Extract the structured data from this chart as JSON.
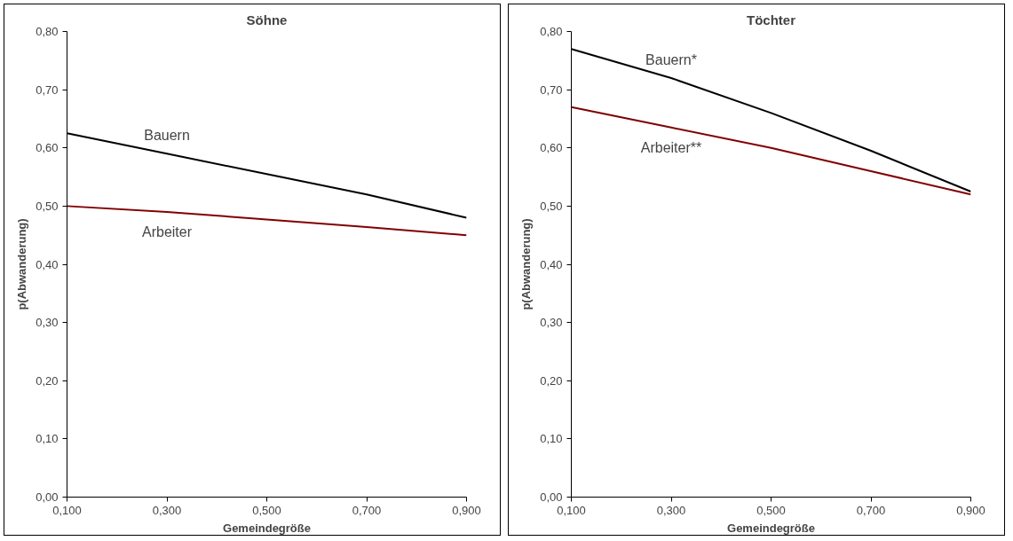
{
  "chart_data": [
    {
      "type": "line",
      "title": "Söhne",
      "xlabel": "Gemeindegröße",
      "ylabel": "p(Abwanderung)",
      "x": [
        0.1,
        0.3,
        0.5,
        0.7,
        0.9
      ],
      "series": [
        {
          "name": "Bauern",
          "color": "#000000",
          "values": [
            0.625,
            0.59,
            0.555,
            0.52,
            0.48
          ]
        },
        {
          "name": "Arbeiter",
          "color": "#800000",
          "values": [
            0.5,
            0.49,
            0.477,
            0.464,
            0.45
          ]
        }
      ],
      "xlim": [
        0.1,
        0.9
      ],
      "xticks": [
        {
          "value": 0.1,
          "label": "0,100"
        },
        {
          "value": 0.3,
          "label": "0,300"
        },
        {
          "value": 0.5,
          "label": "0,500"
        },
        {
          "value": 0.7,
          "label": "0,700"
        },
        {
          "value": 0.9,
          "label": "0,900"
        }
      ],
      "ylim": [
        0,
        0.8
      ],
      "yticks": [
        {
          "value": 0,
          "label": "0,00"
        },
        {
          "value": 0.1,
          "label": "0,10"
        },
        {
          "value": 0.2,
          "label": "0,20"
        },
        {
          "value": 0.3,
          "label": "0,30"
        },
        {
          "value": 0.4,
          "label": "0,40"
        },
        {
          "value": 0.5,
          "label": "0,50"
        },
        {
          "value": 0.6,
          "label": "0,60"
        },
        {
          "value": 0.7,
          "label": "0,70"
        },
        {
          "value": 0.8,
          "label": "0,80"
        }
      ],
      "grid": false
    },
    {
      "type": "line",
      "title": "Töchter",
      "xlabel": "Gemeindegröße",
      "ylabel": "p(Abwanderung)",
      "x": [
        0.1,
        0.3,
        0.5,
        0.7,
        0.9
      ],
      "series": [
        {
          "name": "Bauern*",
          "color": "#000000",
          "values": [
            0.77,
            0.72,
            0.66,
            0.595,
            0.525
          ]
        },
        {
          "name": "Arbeiter**",
          "color": "#800000",
          "values": [
            0.67,
            0.635,
            0.6,
            0.56,
            0.52
          ]
        }
      ],
      "xlim": [
        0.1,
        0.9
      ],
      "xticks": [
        {
          "value": 0.1,
          "label": "0,100"
        },
        {
          "value": 0.3,
          "label": "0,300"
        },
        {
          "value": 0.5,
          "label": "0,500"
        },
        {
          "value": 0.7,
          "label": "0,700"
        },
        {
          "value": 0.9,
          "label": "0,900"
        }
      ],
      "ylim": [
        0,
        0.8
      ],
      "yticks": [
        {
          "value": 0,
          "label": "0,00"
        },
        {
          "value": 0.1,
          "label": "0,10"
        },
        {
          "value": 0.2,
          "label": "0,20"
        },
        {
          "value": 0.3,
          "label": "0,30"
        },
        {
          "value": 0.4,
          "label": "0,40"
        },
        {
          "value": 0.5,
          "label": "0,50"
        },
        {
          "value": 0.6,
          "label": "0,60"
        },
        {
          "value": 0.7,
          "label": "0,70"
        },
        {
          "value": 0.8,
          "label": "0,80"
        }
      ],
      "grid": false
    }
  ]
}
